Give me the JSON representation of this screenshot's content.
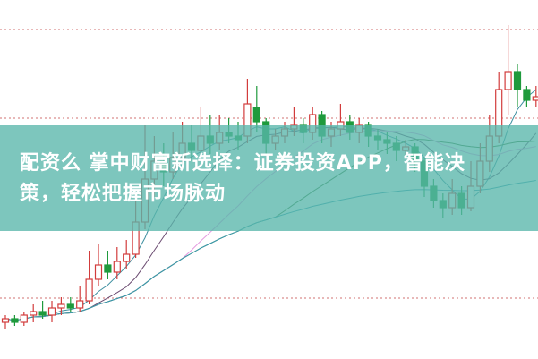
{
  "headline": {
    "line1": "配资么 掌中财富新选择：证券投资APP，智能决",
    "line2": "策，轻松把握市场脉动"
  },
  "chart_data": {
    "type": "candlestick",
    "title": "",
    "xlabel": "",
    "ylabel": "",
    "ylim": [
      0,
      100
    ],
    "grid": {
      "horizontal_dotted": [
        91.75,
        67,
        16.75
      ]
    },
    "colors": {
      "up": "#d23c3c",
      "down": "#1f9a3c",
      "grid": "#d07070",
      "banner": "#58b6aa"
    },
    "moving_averages": [
      {
        "period": 5,
        "color": "#3d8fa0"
      },
      {
        "period": 10,
        "color": "#6a4a70"
      },
      {
        "period": 20,
        "color": "#e49be0"
      },
      {
        "period": 30,
        "color": "#3d7a3d"
      },
      {
        "period": 60,
        "color": "#3a9ab0"
      }
    ],
    "candles": [
      [
        10,
        11,
        12,
        8
      ],
      [
        11,
        10,
        12,
        9
      ],
      [
        10,
        12,
        13,
        9
      ],
      [
        12,
        13,
        15,
        10
      ],
      [
        13,
        12,
        16,
        11
      ],
      [
        12,
        14,
        16,
        10
      ],
      [
        14,
        15,
        17,
        12
      ],
      [
        15,
        14,
        17,
        13
      ],
      [
        14,
        16,
        20,
        13
      ],
      [
        16,
        22,
        30,
        15
      ],
      [
        22,
        26,
        32,
        20
      ],
      [
        26,
        24,
        30,
        22
      ],
      [
        24,
        27,
        31,
        22
      ],
      [
        27,
        29,
        33,
        25
      ],
      [
        29,
        38,
        45,
        28
      ],
      [
        38,
        50,
        65,
        36
      ],
      [
        50,
        55,
        62,
        45
      ],
      [
        55,
        52,
        60,
        48
      ],
      [
        52,
        56,
        63,
        50
      ],
      [
        56,
        60,
        66,
        53
      ],
      [
        60,
        58,
        65,
        55
      ],
      [
        58,
        62,
        70,
        56
      ],
      [
        62,
        60,
        68,
        57
      ],
      [
        60,
        63,
        68,
        58
      ],
      [
        63,
        62,
        67,
        60
      ],
      [
        62,
        61,
        66,
        58
      ],
      [
        62,
        71,
        78,
        60
      ],
      [
        70,
        66,
        76,
        63
      ],
      [
        66,
        60,
        67,
        57
      ],
      [
        60,
        62,
        64,
        58
      ],
      [
        62,
        64,
        66,
        60
      ],
      [
        64,
        65,
        70,
        62
      ],
      [
        65,
        63,
        67,
        60
      ],
      [
        63,
        68,
        70,
        61
      ],
      [
        68,
        62,
        69,
        60
      ],
      [
        62,
        64,
        66,
        59
      ],
      [
        64,
        66,
        71,
        62
      ],
      [
        66,
        63,
        68,
        61
      ],
      [
        63,
        65,
        67,
        60
      ],
      [
        65,
        62,
        66,
        59
      ],
      [
        62,
        61,
        64,
        58
      ],
      [
        61,
        60,
        63,
        57
      ],
      [
        60,
        58,
        62,
        55
      ],
      [
        58,
        59,
        61,
        56
      ],
      [
        59,
        55,
        60,
        52
      ],
      [
        55,
        48,
        56,
        45
      ],
      [
        48,
        44,
        50,
        42
      ],
      [
        44,
        42,
        46,
        39
      ],
      [
        42,
        46,
        50,
        40
      ],
      [
        46,
        42,
        48,
        40
      ],
      [
        42,
        48,
        55,
        41
      ],
      [
        48,
        55,
        60,
        46
      ],
      [
        55,
        62,
        68,
        52
      ],
      [
        62,
        75,
        80,
        60
      ],
      [
        75,
        80,
        93,
        68
      ],
      [
        80,
        75,
        82,
        70
      ],
      [
        75,
        72,
        76,
        70
      ],
      [
        72,
        73,
        76,
        70
      ]
    ]
  }
}
